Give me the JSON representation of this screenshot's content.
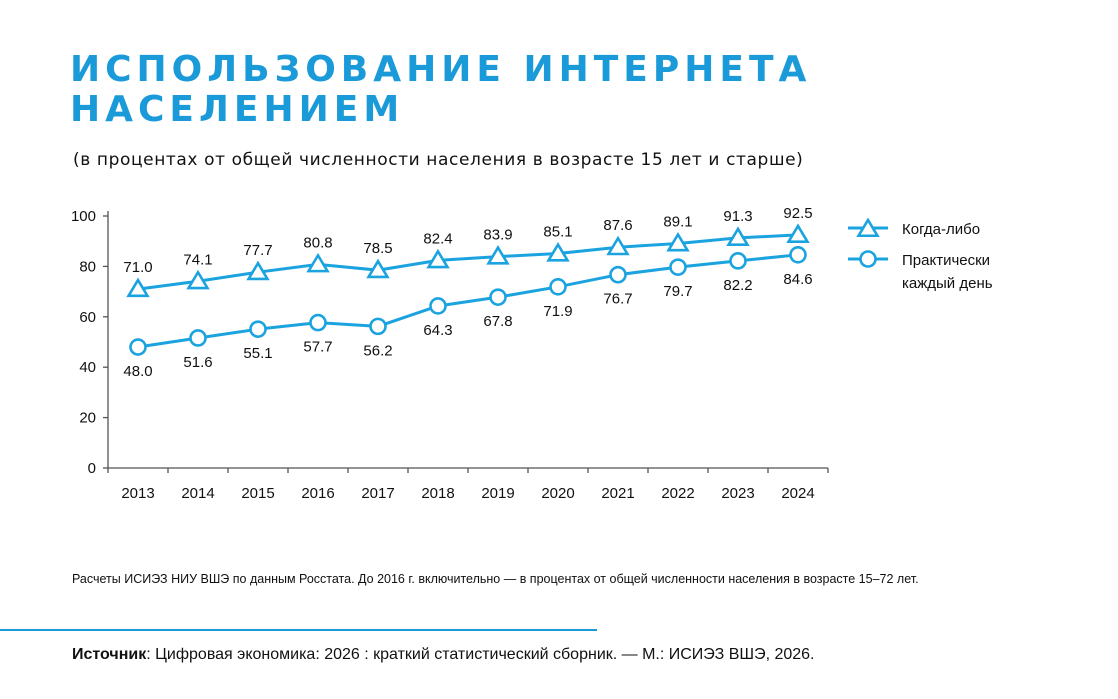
{
  "header": {
    "title_line1": "ИСПОЛЬЗОВАНИЕ ИНТЕРНЕТА",
    "title_line2": "НАСЕЛЕНИЕМ",
    "subtitle": "(в процентах от общей численности населения в возрасте 15 лет и старше)"
  },
  "chart_data": {
    "type": "line",
    "title": "ИСПОЛЬЗОВАНИЕ ИНТЕРНЕТА НАСЕЛЕНИЕМ",
    "subtitle": "(в процентах от общей численности населения в возрасте 15 лет и старше)",
    "x": [
      "2013",
      "2014",
      "2015",
      "2016",
      "2017",
      "2018",
      "2019",
      "2020",
      "2021",
      "2022",
      "2023",
      "2024"
    ],
    "ylim": [
      0,
      100
    ],
    "yticks": [
      0,
      20,
      40,
      60,
      80,
      100
    ],
    "grid": false,
    "legend_position": "right",
    "color": "#1ba3e0",
    "series": [
      {
        "name": "Когда-либо",
        "marker": "triangle",
        "values": [
          71.0,
          74.1,
          77.7,
          80.8,
          78.5,
          82.4,
          83.9,
          85.1,
          87.6,
          89.1,
          91.3,
          92.5
        ],
        "labels": [
          "71.0",
          "74.1",
          "77.7",
          "80.8",
          "78.5",
          "82.4",
          "83.9",
          "85.1",
          "87.6",
          "89.1",
          "91.3",
          "92.5"
        ]
      },
      {
        "name": "Практически каждый день",
        "name_lines": [
          "Практически",
          "каждый день"
        ],
        "marker": "circle",
        "values": [
          48.0,
          51.6,
          55.1,
          57.7,
          56.2,
          64.3,
          67.8,
          71.9,
          76.7,
          79.7,
          82.2,
          84.6
        ],
        "labels": [
          "48.0",
          "51.6",
          "55.1",
          "57.7",
          "56.2",
          "64.3",
          "67.8",
          "71.9",
          "76.7",
          "79.7",
          "82.2",
          "84.6"
        ]
      }
    ]
  },
  "footer": {
    "note": "Расчеты ИСИЭЗ НИУ ВШЭ по данным Росстата. До 2016 г. включительно — в процентах от общей численности населения в возрасте 15–72 лет.",
    "source_label": "Источник",
    "source_text": ": Цифровая экономика: 2026 : краткий статистический сборник. — М.: ИСИЭЗ ВШЭ, 2026."
  }
}
